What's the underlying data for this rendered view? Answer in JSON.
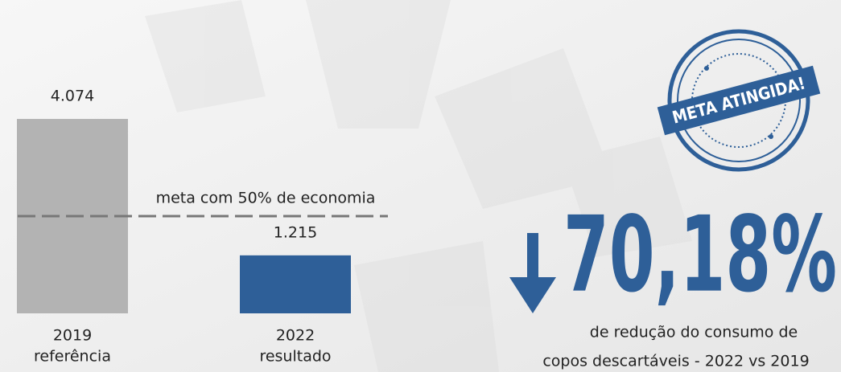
{
  "chart_data": {
    "type": "bar",
    "categories": [
      "2019",
      "2022"
    ],
    "category_sublabels": [
      "referência",
      "resultado"
    ],
    "values": [
      4074,
      1215
    ],
    "value_labels": [
      "4.074",
      "1.215"
    ],
    "colors": [
      "#b3b3b3",
      "#2e5f98"
    ],
    "ylim": [
      0,
      4074
    ],
    "target": {
      "value": 2037,
      "label": "meta com 50% de economia"
    }
  },
  "stamp": {
    "text": "META ATINGIDA!"
  },
  "headline": {
    "value": "70,18%",
    "description": [
      "de redução do consumo de",
      "copos descartáveis - 2022 vs 2019"
    ]
  }
}
